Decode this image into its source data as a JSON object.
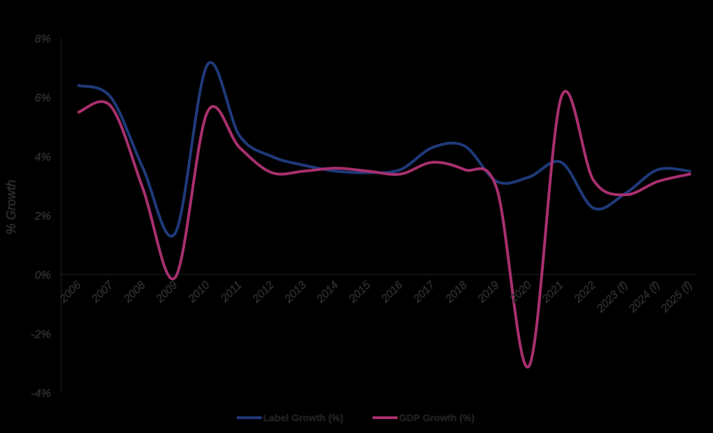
{
  "chart_data": {
    "type": "line",
    "title": "",
    "xlabel": "",
    "ylabel": "% Growth",
    "categories": [
      "2006",
      "2007",
      "2008",
      "2009",
      "2010",
      "2011",
      "2012",
      "2013",
      "2014",
      "2015",
      "2016",
      "2017",
      "2018",
      "2019",
      "2020",
      "2021",
      "2022",
      "2023 (f)",
      "2024 (f)",
      "2025 (f)"
    ],
    "y_ticks": [
      "-4%",
      "-2%",
      "0%",
      "2%",
      "4%",
      "6%",
      "8%"
    ],
    "ylim": [
      -4,
      8
    ],
    "y_unit": "%",
    "grid": false,
    "legend_position": "bottom",
    "series": [
      {
        "name": "Label Growth (%)",
        "color": "#1f3a7a",
        "values": [
          6.4,
          6.0,
          3.6,
          1.4,
          7.1,
          4.7,
          4.0,
          3.7,
          3.5,
          3.45,
          3.55,
          4.3,
          4.35,
          3.15,
          3.3,
          3.8,
          2.25,
          2.75,
          3.55,
          3.5
        ]
      },
      {
        "name": "GDP Growth (%)",
        "color": "#a8306e",
        "values": [
          5.5,
          5.7,
          2.9,
          -0.1,
          5.5,
          4.3,
          3.45,
          3.5,
          3.6,
          3.5,
          3.4,
          3.8,
          3.55,
          2.9,
          -3.1,
          6.0,
          3.2,
          2.7,
          3.15,
          3.4
        ]
      }
    ]
  }
}
